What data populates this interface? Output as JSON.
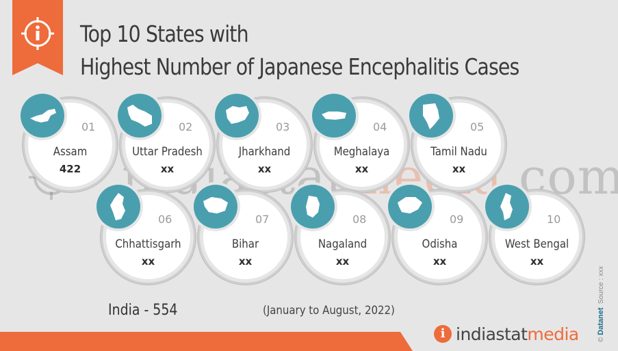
{
  "title": {
    "line1": "Top 10 States with",
    "line2": "Highest Number of Japanese Encephalitis Cases"
  },
  "watermark": {
    "text_a": "indiastat",
    "text_b": "media",
    "text_c": ".com"
  },
  "states": [
    {
      "rank": "01",
      "name": "Assam",
      "value": "422"
    },
    {
      "rank": "02",
      "name": "Uttar Pradesh",
      "value": "xx"
    },
    {
      "rank": "03",
      "name": "Jharkhand",
      "value": "xx"
    },
    {
      "rank": "04",
      "name": "Meghalaya",
      "value": "xx"
    },
    {
      "rank": "05",
      "name": "Tamil Nadu",
      "value": "xx"
    },
    {
      "rank": "06",
      "name": "Chhattisgarh",
      "value": "xx"
    },
    {
      "rank": "07",
      "name": "Bihar",
      "value": "xx"
    },
    {
      "rank": "08",
      "name": "Nagaland",
      "value": "xx"
    },
    {
      "rank": "09",
      "name": "Odisha",
      "value": "xx"
    },
    {
      "rank": "10",
      "name": "West Bengal",
      "value": "xx"
    }
  ],
  "footer": {
    "india_total": "India - 554",
    "period": "(January to August, 2022)",
    "brand_a": "indiastat",
    "brand_b": "media",
    "brand_icon": "i",
    "credit_brand": "Datanet",
    "credit_source": "Source : xxx"
  },
  "colors": {
    "accent": "#ee6b3b",
    "badge": "#4a9fae"
  },
  "icons": [
    "info-icon",
    "state-map-icon"
  ]
}
